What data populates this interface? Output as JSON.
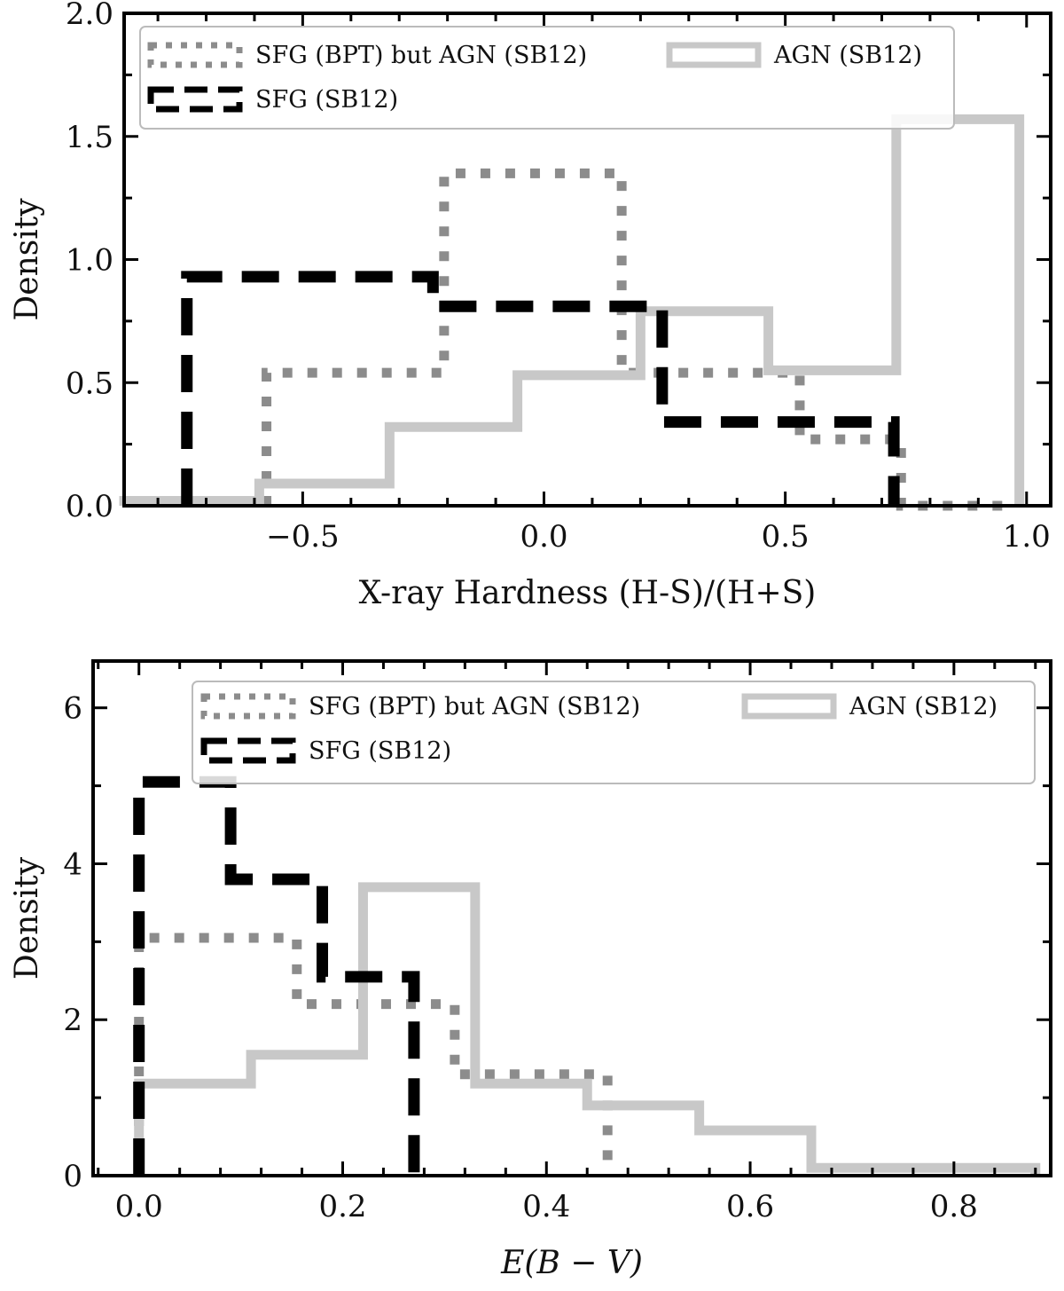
{
  "chart_data": [
    {
      "type": "histogram",
      "xlabel": "X-ray Hardness (H-S)/(H+S)",
      "ylabel": "Density",
      "xlim": [
        -0.87,
        1.05
      ],
      "ylim": [
        0,
        2.0
      ],
      "xticks": [
        -0.5,
        0.0,
        0.5,
        1.0
      ],
      "xtick_labels": [
        "−0.5",
        "0.0",
        "0.5",
        "1.0"
      ],
      "yticks": [
        0.0,
        0.5,
        1.0,
        1.5,
        2.0
      ],
      "ytick_labels": [
        "0.0",
        "0.5",
        "1.0",
        "1.5",
        "2.0"
      ],
      "legend": {
        "position": "top-left",
        "entries": [
          {
            "series": 0,
            "label": "SFG (BPT) but AGN (SB12)"
          },
          {
            "series": 1,
            "label": "AGN (SB12)"
          },
          {
            "series": 2,
            "label": "SFG (SB12)"
          }
        ]
      },
      "series": [
        {
          "name": "SFG (BPT) but AGN (SB12)",
          "style": "dotted",
          "color": "#8c8c8c",
          "edges": [
            -0.575,
            -0.207,
            0.161,
            0.53,
            0.74,
            0.95
          ],
          "values": [
            0.54,
            1.35,
            0.54,
            0.27,
            0.0
          ]
        },
        {
          "name": "AGN (SB12)",
          "style": "solid",
          "color": "#c8c8c8",
          "edges": [
            -0.87,
            -0.59,
            -0.32,
            -0.055,
            0.2,
            0.465,
            0.73,
            0.985
          ],
          "values": [
            0.02,
            0.09,
            0.32,
            0.53,
            0.79,
            0.55,
            1.57
          ]
        },
        {
          "name": "SFG (SB12)",
          "style": "dashed",
          "color": "#000000",
          "edges": [
            -0.74,
            -0.23,
            0.245,
            0.725
          ],
          "values": [
            0.93,
            0.81,
            0.34
          ]
        }
      ]
    },
    {
      "type": "histogram",
      "xlabel": "E(B − V)",
      "ylabel": "Density",
      "xlim": [
        -0.045,
        0.895
      ],
      "ylim": [
        0,
        6.6
      ],
      "xticks": [
        0.0,
        0.2,
        0.4,
        0.6,
        0.8
      ],
      "xtick_labels": [
        "0.0",
        "0.2",
        "0.4",
        "0.6",
        "0.8"
      ],
      "yticks": [
        0,
        2,
        4,
        6
      ],
      "ytick_labels": [
        "0",
        "2",
        "4",
        "6"
      ],
      "legend": {
        "position": "top-right",
        "entries": [
          {
            "series": 0,
            "label": "SFG (BPT) but AGN (SB12)"
          },
          {
            "series": 1,
            "label": "AGN (SB12)"
          },
          {
            "series": 2,
            "label": "SFG (SB12)"
          }
        ]
      },
      "series": [
        {
          "name": "SFG (BPT) but AGN (SB12)",
          "style": "dotted",
          "color": "#8c8c8c",
          "edges": [
            0.0,
            0.155,
            0.31,
            0.46
          ],
          "values": [
            3.05,
            2.2,
            1.3
          ]
        },
        {
          "name": "AGN (SB12)",
          "style": "solid",
          "color": "#c8c8c8",
          "edges": [
            0.0,
            0.11,
            0.22,
            0.33,
            0.44,
            0.55,
            0.66,
            0.88
          ],
          "values": [
            1.18,
            1.55,
            3.7,
            1.18,
            0.9,
            0.58,
            0.1
          ]
        },
        {
          "name": "SFG (SB12)",
          "style": "dashed",
          "color": "#000000",
          "edges": [
            0.0,
            0.09,
            0.18,
            0.27
          ],
          "values": [
            5.05,
            3.8,
            2.55
          ]
        }
      ]
    }
  ]
}
